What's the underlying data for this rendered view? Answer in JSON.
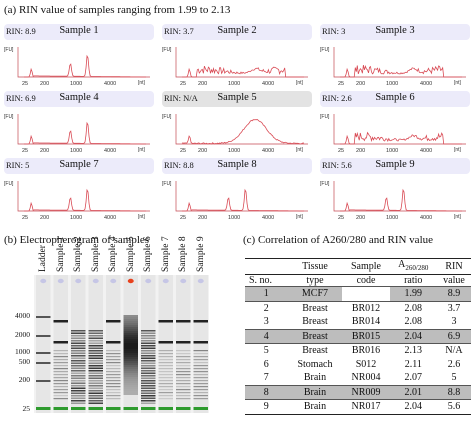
{
  "panel_a": {
    "title": "(a) RIN value of samples ranging from 1.99 to 2.13",
    "axis_fu": "[FU]",
    "axis_nt": "[nt]",
    "tick_25": "25",
    "tick_200": "200",
    "tick_1000": "1000",
    "tick_4000": "4000",
    "samples": [
      {
        "name": "Sample 1",
        "rin": "RIN: 8.9",
        "profile": "intact"
      },
      {
        "name": "Sample 2",
        "rin": "RIN: 3.7",
        "profile": "degraded"
      },
      {
        "name": "Sample 3",
        "rin": "RIN: 3",
        "profile": "degraded"
      },
      {
        "name": "Sample 4",
        "rin": "RIN: 6.9",
        "profile": "intact"
      },
      {
        "name": "Sample 5",
        "rin": "RIN: N/A",
        "profile": "smear"
      },
      {
        "name": "Sample 6",
        "rin": "RIN: 2.6",
        "profile": "degraded"
      },
      {
        "name": "Sample 7",
        "rin": "RIN: 5",
        "profile": "intact"
      },
      {
        "name": "Sample 8",
        "rin": "RIN: 8.8",
        "profile": "intact"
      },
      {
        "name": "Sample 9",
        "rin": "RIN: 5.6",
        "profile": "intact"
      }
    ],
    "colors": {
      "trace": "#d94b55",
      "header": "#ecebfa",
      "header_na": "#e3e3e3"
    }
  },
  "panel_b": {
    "title": "(b) Electropherogram of samples",
    "lanes": [
      "Ladder",
      "Sample 1",
      "Sample 2",
      "Sample 3",
      "Sample 4",
      "Sample 5",
      "Sample 6",
      "Sample 7",
      "Sample 8",
      "Sample 9"
    ],
    "size_ticks": [
      "4000",
      "2000",
      "1000",
      "500",
      "200",
      "25"
    ],
    "colors": {
      "marker": "#2e9b2e",
      "band": "#222222",
      "gel_bg": "#f2f2f2",
      "highlight": "#e8411c"
    }
  },
  "panel_c": {
    "title_pre": "(c) Correlation of A260/280 and RIN value",
    "headers": {
      "sno": "S. no.",
      "tissue_1": "Tissue",
      "tissue_2": "type",
      "code_1": "Sample",
      "code_2": "code",
      "ratio_a": "A",
      "ratio_sub": "260/280",
      "ratio_2": "ratio",
      "rin_1": "RIN",
      "rin_2": "value"
    },
    "rows": [
      {
        "sno": "1",
        "tissue": "MCF7",
        "code": "",
        "ratio": "1.99",
        "rin": "8.9",
        "shaded": true
      },
      {
        "sno": "2",
        "tissue": "Breast",
        "code": "BR012",
        "ratio": "2.08",
        "rin": "3.7",
        "shaded": false
      },
      {
        "sno": "3",
        "tissue": "Breast",
        "code": "BR014",
        "ratio": "2.08",
        "rin": "3",
        "shaded": false
      },
      {
        "sno": "4",
        "tissue": "Breast",
        "code": "BR015",
        "ratio": "2.04",
        "rin": "6.9",
        "shaded": true
      },
      {
        "sno": "5",
        "tissue": "Breast",
        "code": "BR016",
        "ratio": "2.13",
        "rin": "N/A",
        "shaded": false
      },
      {
        "sno": "6",
        "tissue": "Stomach",
        "code": "S012",
        "ratio": "2.11",
        "rin": "2.6",
        "shaded": false
      },
      {
        "sno": "7",
        "tissue": "Brain",
        "code": "NR004",
        "ratio": "2.07",
        "rin": "5",
        "shaded": false
      },
      {
        "sno": "8",
        "tissue": "Brain",
        "code": "NR009",
        "ratio": "2.01",
        "rin": "8.8",
        "shaded": true
      },
      {
        "sno": "9",
        "tissue": "Brain",
        "code": "NR017",
        "ratio": "2.04",
        "rin": "5.6",
        "shaded": false
      }
    ]
  }
}
